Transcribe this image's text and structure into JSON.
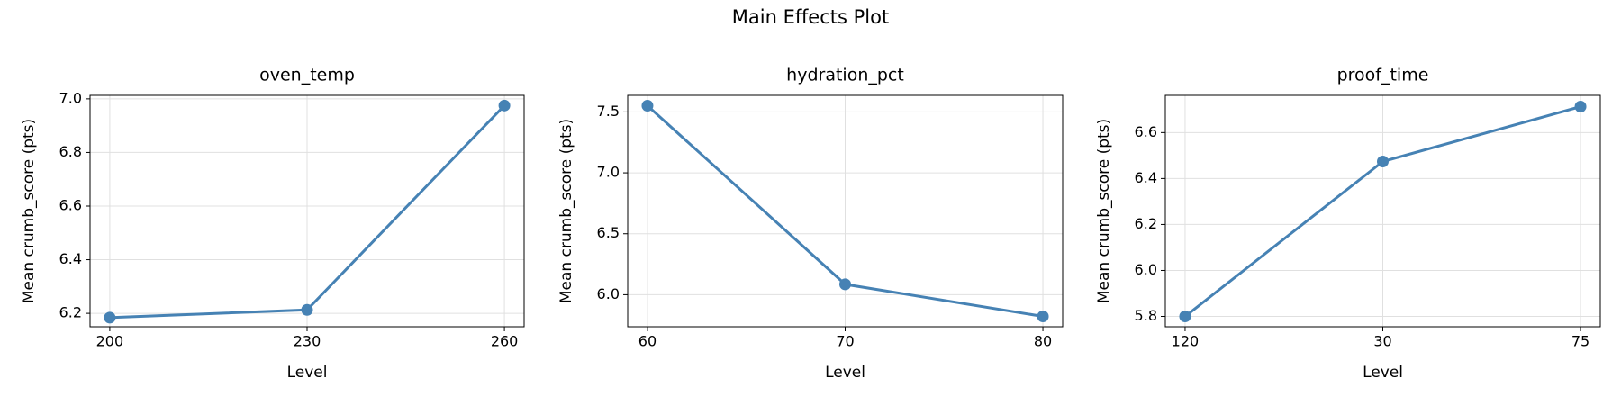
{
  "title": "Main Effects Plot",
  "chart_data": [
    {
      "type": "line",
      "title": "oven_temp",
      "x_label": "Level",
      "y_label": "Mean crumb_score (pts)",
      "categories": [
        "200",
        "230",
        "260"
      ],
      "values": [
        6.184,
        6.213,
        6.975
      ],
      "color": "#4682b4",
      "ylim": [
        6.15,
        7.013
      ],
      "yticks": [
        6.2,
        6.4,
        6.6,
        6.8,
        {
          "value": 7.0,
          "label": "7.0"
        }
      ],
      "grid": true
    },
    {
      "type": "line",
      "title": "hydration_pct",
      "x_label": "Level",
      "y_label": "Mean crumb_score (pts)",
      "categories": [
        "60",
        "70",
        "80"
      ],
      "values": [
        7.551,
        6.085,
        5.822
      ],
      "color": "#4682b4",
      "ylim": [
        5.737,
        7.636
      ],
      "yticks": [
        {
          "value": 6.0,
          "label": "6.0"
        },
        6.5,
        {
          "value": 7.0,
          "label": "7.0"
        },
        7.5
      ],
      "grid": true
    },
    {
      "type": "line",
      "title": "proof_time",
      "x_label": "Level",
      "y_label": "Mean crumb_score (pts)",
      "categories": [
        "120",
        "30",
        "75"
      ],
      "values": [
        5.8,
        6.474,
        6.713
      ],
      "color": "#4682b4",
      "ylim": [
        5.755,
        6.762
      ],
      "yticks": [
        5.8,
        {
          "value": 6.0,
          "label": "6.0"
        },
        6.2,
        6.4,
        6.6
      ],
      "grid": true
    }
  ]
}
